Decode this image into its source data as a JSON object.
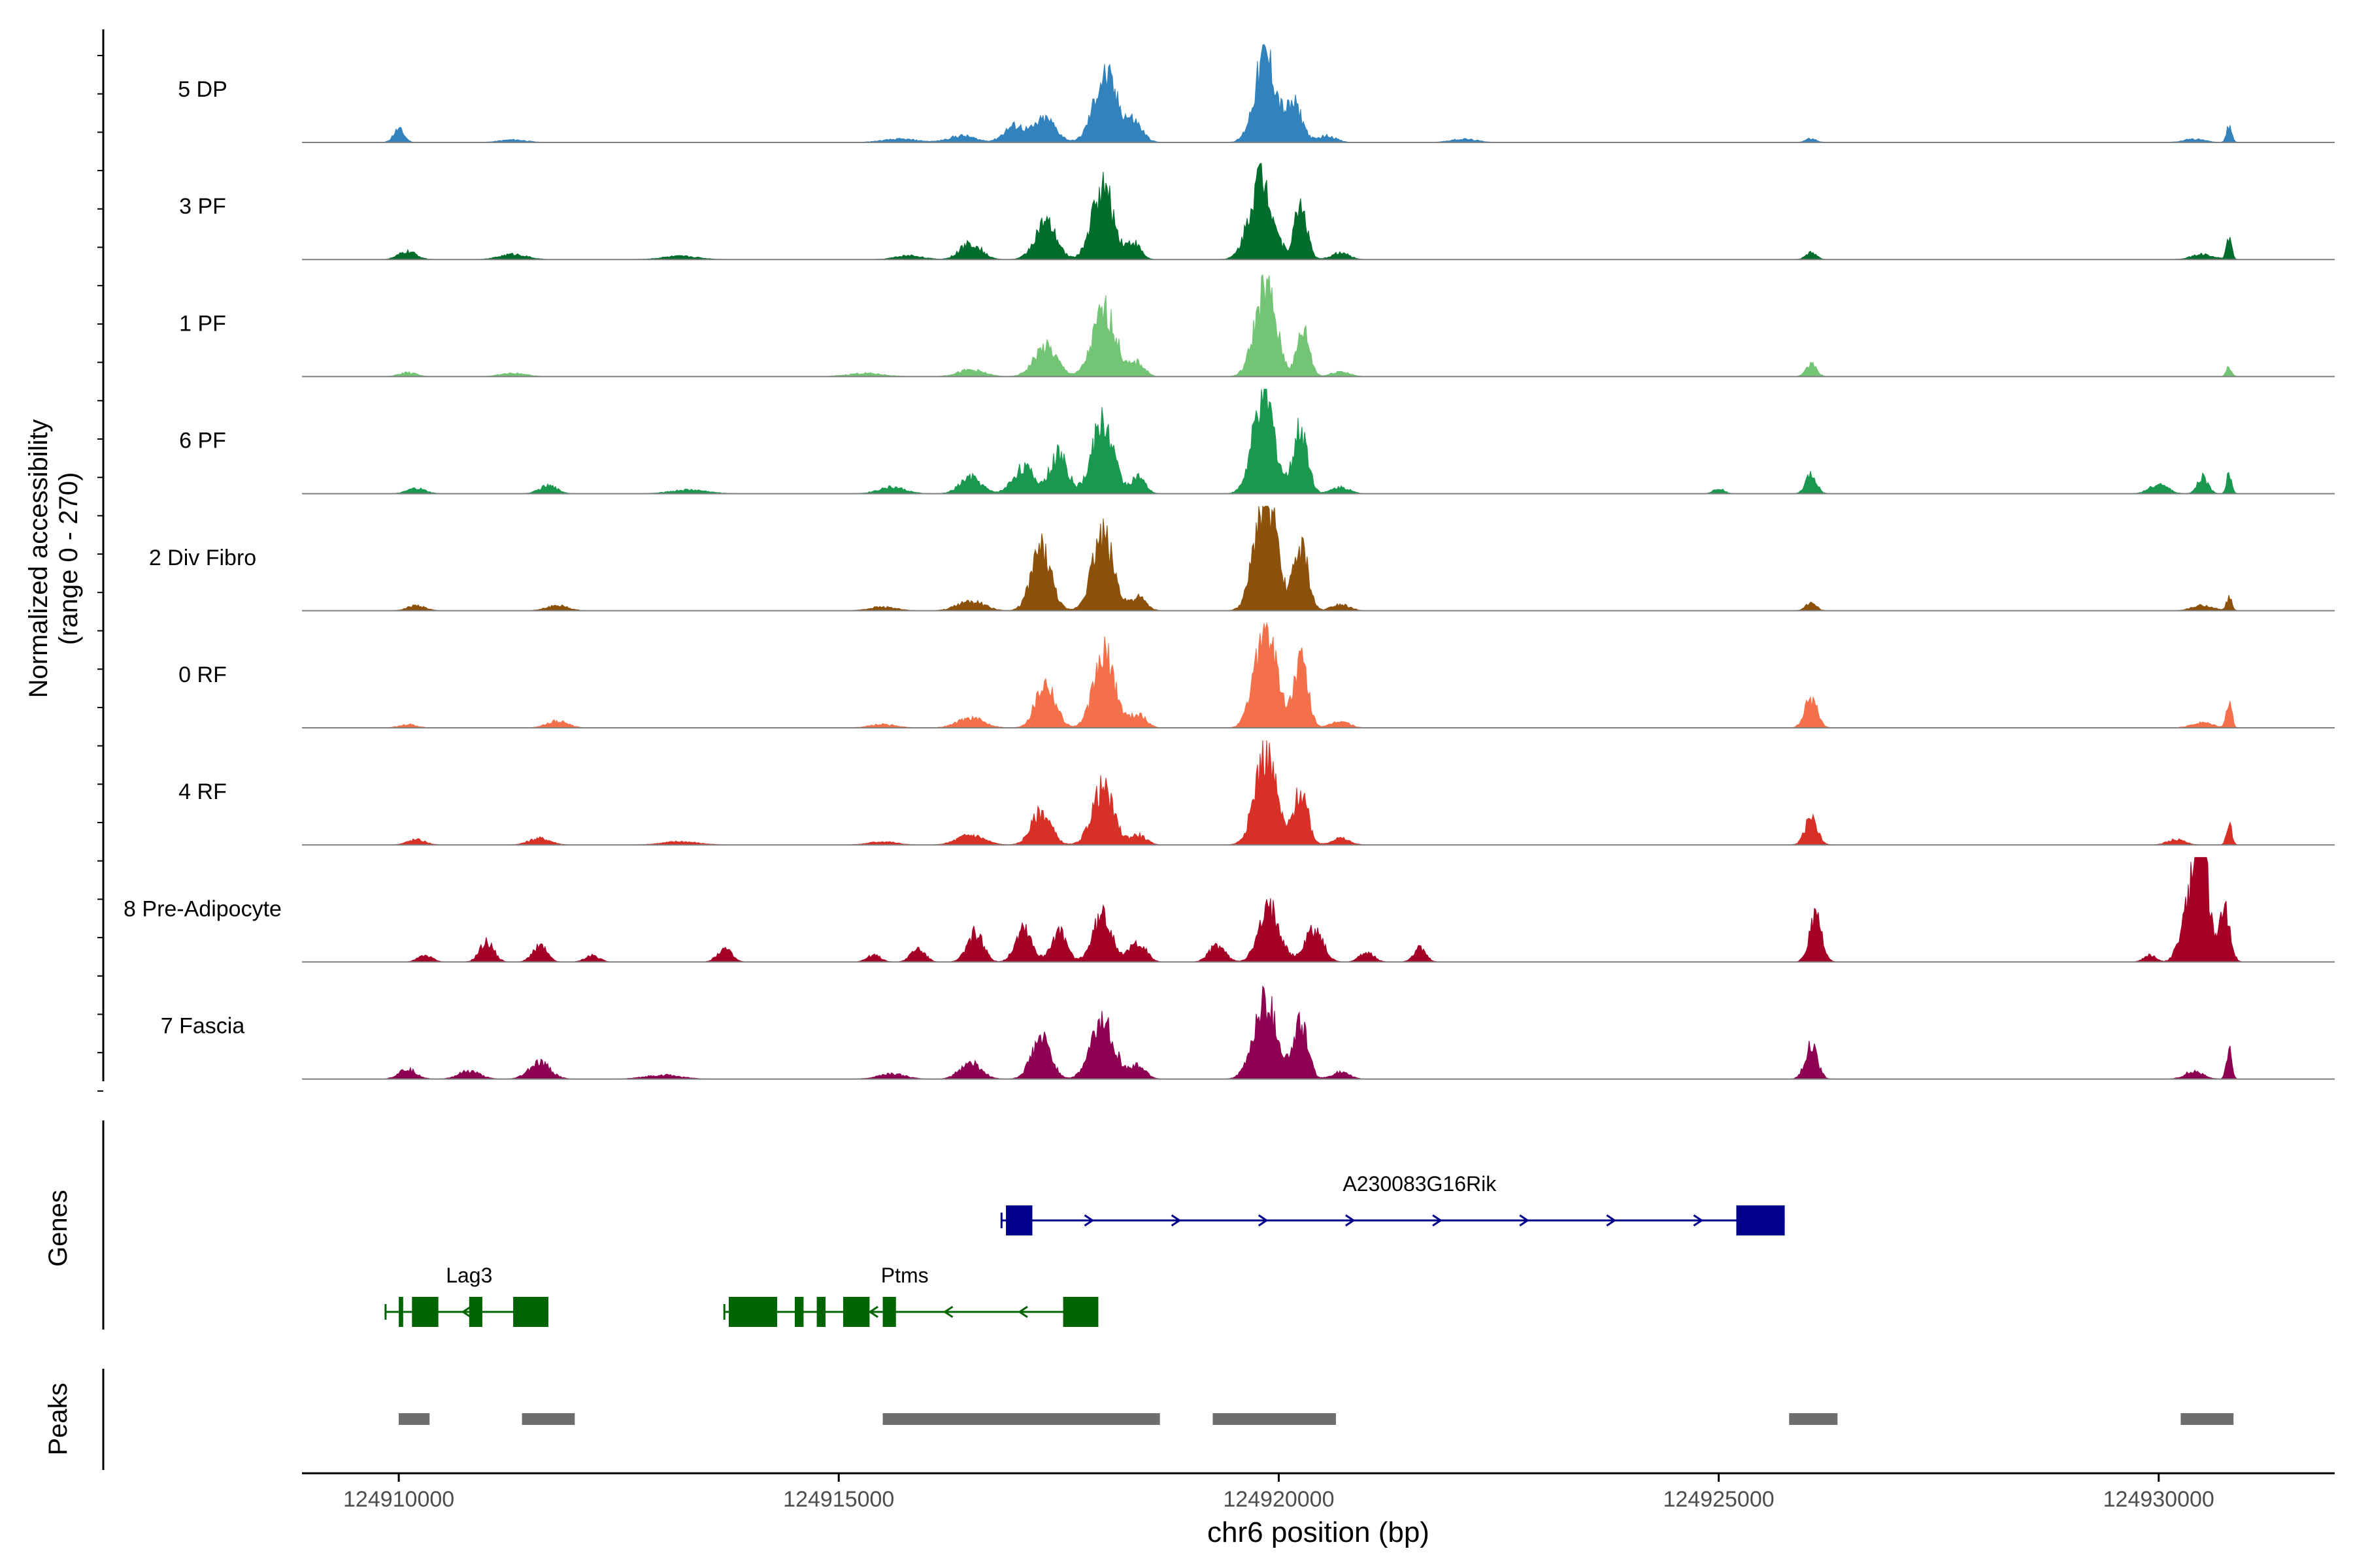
{
  "chart_data": {
    "type": "area",
    "title": "",
    "region": "chr6",
    "xlabel": "chr6 position (bp)",
    "xlim": [
      124908900,
      124932000
    ],
    "xticks": [
      124910000,
      124915000,
      124920000,
      124925000,
      124930000
    ],
    "xtick_labels": [
      "124910000",
      "124915000",
      "124920000",
      "124925000",
      "124930000"
    ],
    "ylabel_line1": "Normalized accessibility",
    "ylabel_line2": "(range 0 - 270)",
    "ylim": [
      0,
      270
    ],
    "track_labels": {
      "genes": "Genes",
      "peaks": "Peaks"
    },
    "series": [
      {
        "name": "5 DP",
        "color": "#3182BD",
        "peaks": [
          [
            124910000,
            20,
            60
          ],
          [
            124911300,
            4,
            150
          ],
          [
            124915700,
            5,
            200
          ],
          [
            124916400,
            10,
            150
          ],
          [
            124917000,
            25,
            120
          ],
          [
            124917350,
            35,
            120
          ],
          [
            124918030,
            100,
            130
          ],
          [
            124918350,
            30,
            100
          ],
          [
            124919850,
            130,
            120
          ],
          [
            124920180,
            55,
            90
          ],
          [
            124920550,
            10,
            100
          ],
          [
            124922100,
            5,
            150
          ],
          [
            124926050,
            6,
            60
          ],
          [
            124930400,
            5,
            120
          ],
          [
            124930800,
            25,
            30
          ]
        ]
      },
      {
        "name": "3 PF",
        "color": "#006D2C",
        "peaks": [
          [
            124910100,
            12,
            100
          ],
          [
            124911300,
            8,
            150
          ],
          [
            124913200,
            5,
            200
          ],
          [
            124915800,
            6,
            150
          ],
          [
            124916500,
            25,
            120
          ],
          [
            124917350,
            55,
            120
          ],
          [
            124918000,
            110,
            120
          ],
          [
            124918350,
            25,
            80
          ],
          [
            124919800,
            125,
            130
          ],
          [
            124920250,
            85,
            70
          ],
          [
            124920700,
            10,
            100
          ],
          [
            124926050,
            10,
            60
          ],
          [
            124930500,
            8,
            120
          ],
          [
            124930800,
            30,
            30
          ]
        ]
      },
      {
        "name": "1 PF",
        "color": "#74C476",
        "peaks": [
          [
            124910100,
            6,
            100
          ],
          [
            124911300,
            5,
            150
          ],
          [
            124915300,
            5,
            200
          ],
          [
            124916500,
            10,
            150
          ],
          [
            124917350,
            45,
            130
          ],
          [
            124918020,
            100,
            130
          ],
          [
            124918400,
            20,
            80
          ],
          [
            124919850,
            135,
            120
          ],
          [
            124920280,
            70,
            70
          ],
          [
            124920700,
            8,
            100
          ],
          [
            124926050,
            18,
            60
          ],
          [
            124930800,
            15,
            30
          ]
        ]
      },
      {
        "name": "6 PF",
        "color": "#1A9850",
        "peaks": [
          [
            124910200,
            8,
            100
          ],
          [
            124911700,
            12,
            100
          ],
          [
            124913300,
            6,
            200
          ],
          [
            124915600,
            10,
            150
          ],
          [
            124916500,
            25,
            120
          ],
          [
            124917100,
            40,
            120
          ],
          [
            124917500,
            60,
            100
          ],
          [
            124918000,
            110,
            120
          ],
          [
            124918400,
            25,
            80
          ],
          [
            124919830,
            150,
            120
          ],
          [
            124920250,
            100,
            80
          ],
          [
            124920700,
            10,
            100
          ],
          [
            124925000,
            8,
            60
          ],
          [
            124926050,
            30,
            60
          ],
          [
            124930000,
            15,
            100
          ],
          [
            124930500,
            25,
            60
          ],
          [
            124930800,
            30,
            30
          ]
        ]
      },
      {
        "name": "2 Div Fibro",
        "color": "#8C510A",
        "peaks": [
          [
            124910200,
            8,
            100
          ],
          [
            124911800,
            8,
            120
          ],
          [
            124915500,
            6,
            150
          ],
          [
            124916500,
            15,
            150
          ],
          [
            124917300,
            95,
            110
          ],
          [
            124918000,
            115,
            120
          ],
          [
            124918400,
            20,
            90
          ],
          [
            124919850,
            180,
            120
          ],
          [
            124920250,
            100,
            80
          ],
          [
            124920700,
            10,
            100
          ],
          [
            124926050,
            12,
            60
          ],
          [
            124930500,
            8,
            120
          ],
          [
            124930800,
            20,
            30
          ]
        ]
      },
      {
        "name": "0 RF",
        "color": "#F4704A",
        "peaks": [
          [
            124910100,
            5,
            100
          ],
          [
            124911800,
            10,
            120
          ],
          [
            124915500,
            5,
            150
          ],
          [
            124916500,
            15,
            150
          ],
          [
            124917350,
            70,
            110
          ],
          [
            124918020,
            110,
            120
          ],
          [
            124918400,
            20,
            90
          ],
          [
            124919850,
            160,
            120
          ],
          [
            124920250,
            100,
            80
          ],
          [
            124920700,
            10,
            100
          ],
          [
            124926050,
            45,
            70
          ],
          [
            124930500,
            8,
            120
          ],
          [
            124930800,
            45,
            30
          ]
        ]
      },
      {
        "name": "4 RF",
        "color": "#D73027",
        "peaks": [
          [
            124910200,
            8,
            100
          ],
          [
            124911600,
            10,
            120
          ],
          [
            124913200,
            5,
            200
          ],
          [
            124915500,
            5,
            150
          ],
          [
            124916500,
            15,
            150
          ],
          [
            124917300,
            50,
            110
          ],
          [
            124918000,
            85,
            120
          ],
          [
            124918400,
            15,
            90
          ],
          [
            124919850,
            140,
            120
          ],
          [
            124920250,
            80,
            80
          ],
          [
            124920700,
            10,
            100
          ],
          [
            124926050,
            40,
            70
          ],
          [
            124930200,
            8,
            100
          ],
          [
            124930800,
            35,
            30
          ]
        ]
      },
      {
        "name": "8 Pre-Adipocyte",
        "color": "#A50026",
        "peaks": [
          [
            124910300,
            10,
            80
          ],
          [
            124911000,
            30,
            80
          ],
          [
            124911600,
            25,
            80
          ],
          [
            124912200,
            10,
            80
          ],
          [
            124913700,
            20,
            80
          ],
          [
            124915400,
            10,
            80
          ],
          [
            124915900,
            20,
            80
          ],
          [
            124916550,
            45,
            90
          ],
          [
            124917100,
            55,
            90
          ],
          [
            124917500,
            45,
            90
          ],
          [
            124918000,
            70,
            110
          ],
          [
            124918400,
            30,
            90
          ],
          [
            124919300,
            25,
            90
          ],
          [
            124919900,
            80,
            120
          ],
          [
            124920400,
            50,
            100
          ],
          [
            124921000,
            15,
            80
          ],
          [
            124921600,
            20,
            70
          ],
          [
            124926100,
            70,
            70
          ],
          [
            124929900,
            10,
            70
          ],
          [
            124930300,
            55,
            80
          ],
          [
            124930470,
            220,
            80
          ],
          [
            124930750,
            80,
            60
          ]
        ]
      },
      {
        "name": "7 Fascia",
        "color": "#8E0152",
        "peaks": [
          [
            124910100,
            15,
            100
          ],
          [
            124910800,
            12,
            120
          ],
          [
            124911600,
            25,
            120
          ],
          [
            124913000,
            6,
            200
          ],
          [
            124915600,
            8,
            150
          ],
          [
            124916500,
            25,
            120
          ],
          [
            124917300,
            60,
            110
          ],
          [
            124918000,
            90,
            130
          ],
          [
            124918400,
            20,
            90
          ],
          [
            124919850,
            120,
            130
          ],
          [
            124920250,
            85,
            80
          ],
          [
            124920700,
            10,
            100
          ],
          [
            124926050,
            50,
            70
          ],
          [
            124930400,
            12,
            100
          ],
          [
            124930800,
            45,
            30
          ]
        ]
      }
    ],
    "genes": [
      {
        "name": "A230083G16Rik",
        "color": "#00008B",
        "strand": "+",
        "row": 0,
        "start": 124916850,
        "end": 124925750,
        "exons": [
          [
            124916900,
            124917200
          ],
          [
            124925200,
            124925750
          ]
        ]
      },
      {
        "name": "Lag3",
        "color": "#006400",
        "strand": "-",
        "row": 1,
        "start": 124909850,
        "end": 124911700,
        "exons": [
          [
            124910000,
            124910050
          ],
          [
            124910150,
            124910450
          ],
          [
            124910800,
            124910950
          ],
          [
            124911300,
            124911700
          ]
        ]
      },
      {
        "name": "Ptms",
        "color": "#006400",
        "strand": "-",
        "row": 1,
        "start": 124913700,
        "end": 124917950,
        "exons": [
          [
            124913750,
            124914300
          ],
          [
            124914500,
            124914600
          ],
          [
            124914750,
            124914850
          ],
          [
            124915050,
            124915350
          ],
          [
            124915500,
            124915650
          ],
          [
            124917550,
            124917950
          ]
        ]
      }
    ],
    "peaks_track": {
      "color": "#6E6E6E",
      "intervals": [
        [
          124910000,
          124910350
        ],
        [
          124911400,
          124912000
        ],
        [
          124915500,
          124918650
        ],
        [
          124919250,
          124920650
        ],
        [
          124925800,
          124926350
        ],
        [
          124930250,
          124930850
        ]
      ]
    }
  }
}
